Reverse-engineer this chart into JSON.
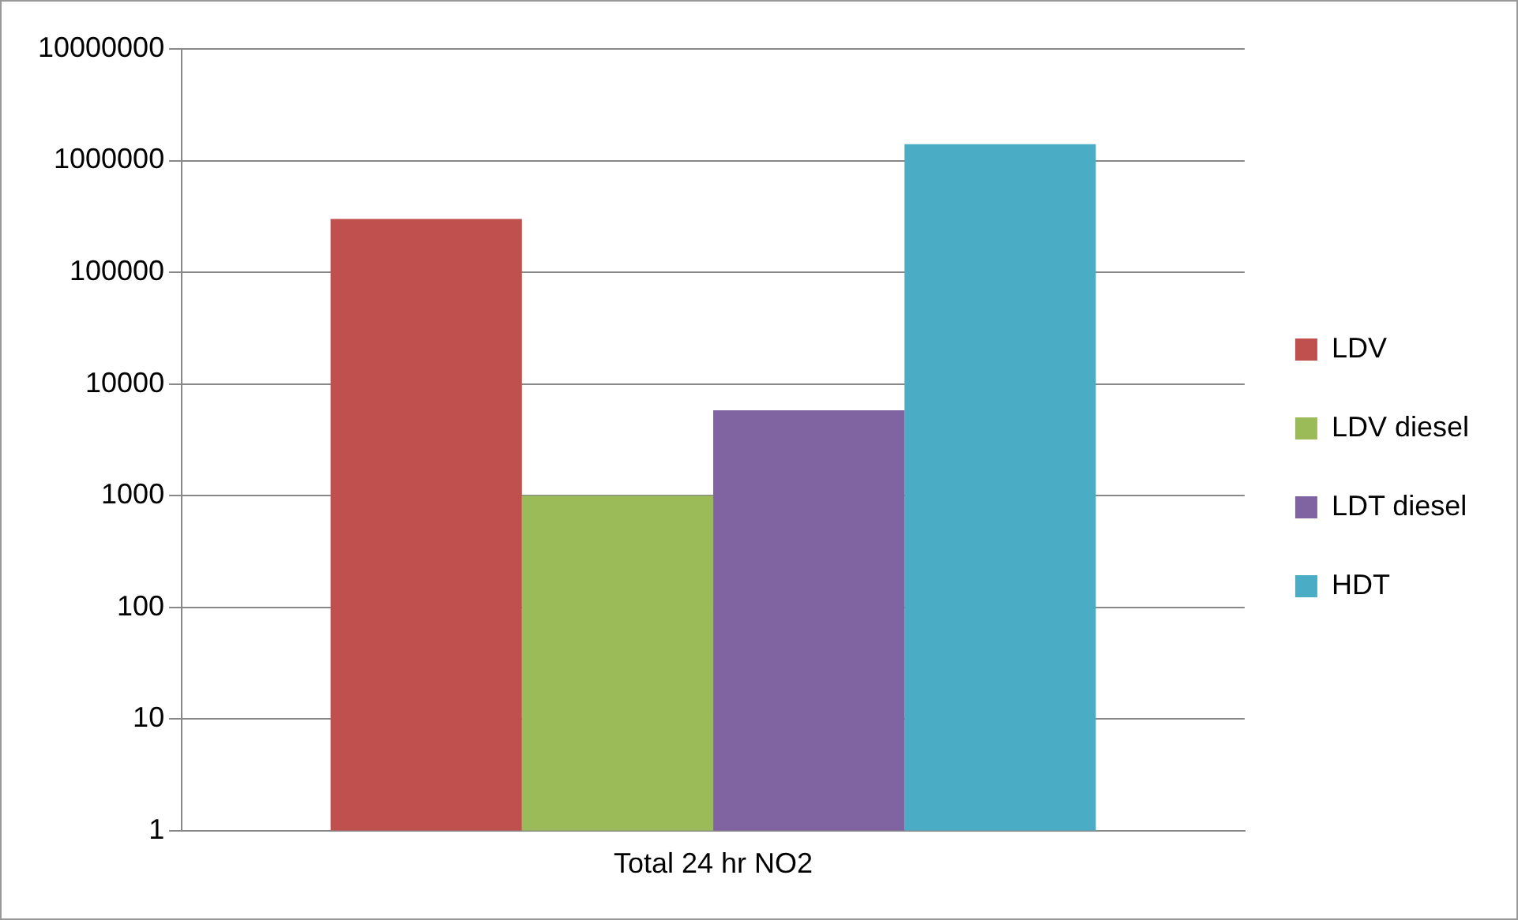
{
  "chart_data": {
    "type": "bar",
    "categories": [
      "Total 24 hr NO2"
    ],
    "series": [
      {
        "name": "LDV",
        "color": "#c0504d",
        "values": [
          300000
        ]
      },
      {
        "name": "LDV diesel",
        "color": "#9bbb59",
        "values": [
          1000
        ]
      },
      {
        "name": "LDT diesel",
        "color": "#8064a2",
        "values": [
          5800
        ]
      },
      {
        "name": "HDT",
        "color": "#4bacc6",
        "values": [
          1400000
        ]
      }
    ],
    "log": "y",
    "ylim": [
      1,
      10000000
    ],
    "yticks": [
      1,
      10,
      100,
      1000,
      10000,
      100000,
      1000000,
      10000000
    ],
    "grid": "y",
    "legend": "right"
  }
}
